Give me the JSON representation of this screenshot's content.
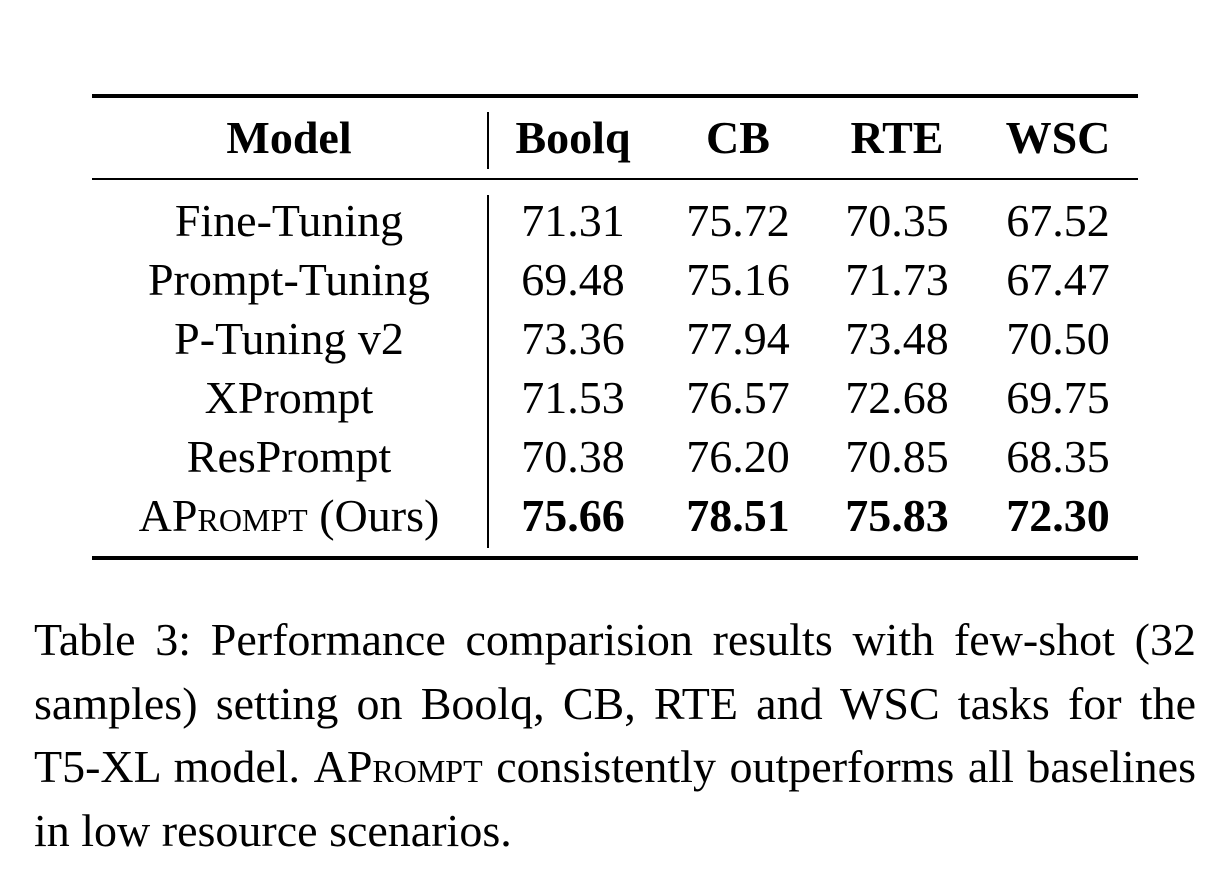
{
  "table": {
    "headers": [
      "Model",
      "Boolq",
      "CB",
      "RTE",
      "WSC"
    ],
    "rows": [
      {
        "model": "Fine-Tuning",
        "values": [
          "71.31",
          "75.72",
          "70.35",
          "67.52"
        ],
        "bold": false
      },
      {
        "model": "Prompt-Tuning",
        "values": [
          "69.48",
          "75.16",
          "71.73",
          "67.47"
        ],
        "bold": false
      },
      {
        "model": "P-Tuning v2",
        "values": [
          "73.36",
          "77.94",
          "73.48",
          "70.50"
        ],
        "bold": false
      },
      {
        "model": "XPrompt",
        "values": [
          "71.53",
          "76.57",
          "72.68",
          "69.75"
        ],
        "bold": false
      },
      {
        "model": "ResPrompt",
        "values": [
          "70.38",
          "76.20",
          "70.85",
          "68.35"
        ],
        "bold": false
      },
      {
        "model_sc": "APrompt",
        "model_suffix": " (Ours)",
        "values": [
          "75.66",
          "78.51",
          "75.83",
          "72.30"
        ],
        "bold": true
      }
    ]
  },
  "caption": {
    "part1": "Table 3:  Performance comparision results with few-shot (32 samples) setting on Boolq, CB, RTE and WSC tasks for the T5-XL model.  ",
    "name_sc": "APrompt",
    "part2": " consistently outperforms all baselines in low resource scenarios."
  }
}
